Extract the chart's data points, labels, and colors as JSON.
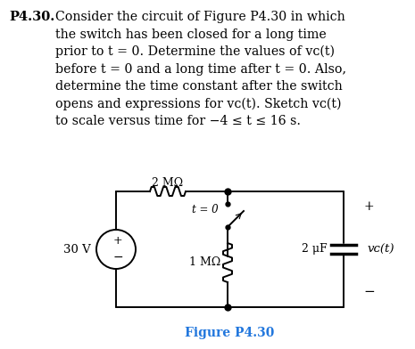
{
  "background_color": "#ffffff",
  "title_bold": "P4.30.",
  "figure_label": "Figure P4.30",
  "figure_label_color": "#2277DD",
  "resistor_top_label": "2 MΩ",
  "resistor_bottom_label": "1 MΩ",
  "capacitor_label": "2 μF",
  "switch_label": "t = 0",
  "voltage_label": "30 V",
  "vc_label": "vᴄ(t)",
  "plus_top": "+",
  "minus_bottom": "−",
  "source_plus": "+",
  "source_minus": "−",
  "text_lines": [
    "Consider the circuit of Figure P4.30 in which",
    "the switch has been closed for a long time",
    "prior to t = 0. Determine the values of vᴄ(t)",
    "before t = 0 and a long time after t = 0. Also,",
    "determine the time constant after the switch",
    "opens and expressions for vᴄ(t). Sketch vᴄ(t)",
    "to scale versus time for −4 ≤ t ≤ 16 s."
  ]
}
